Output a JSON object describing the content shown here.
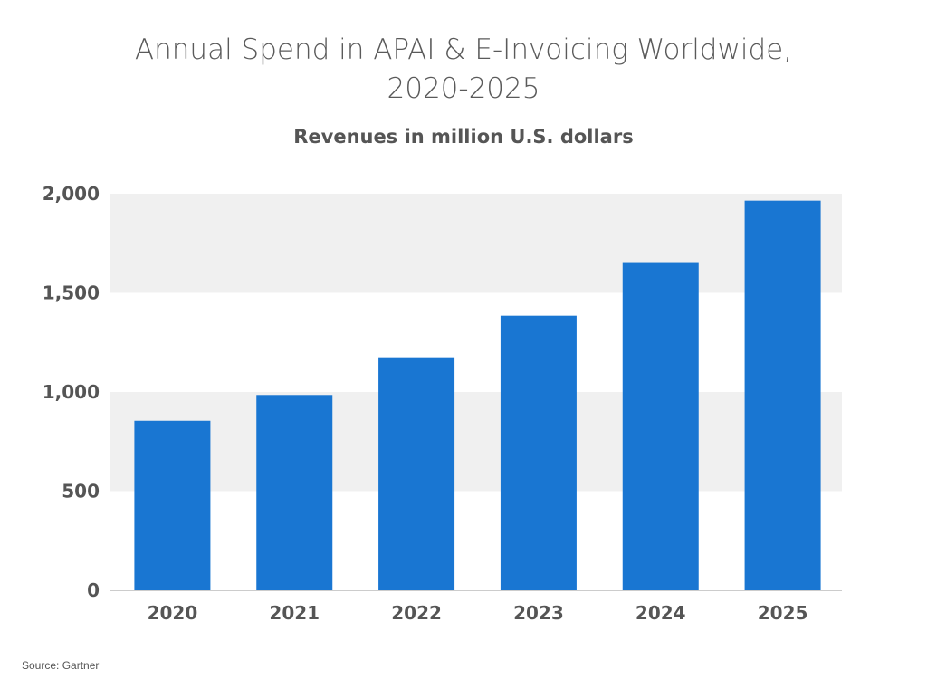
{
  "chart_data": {
    "type": "bar",
    "title_line1": "Annual Spend in APAI & E-Invoicing Worldwide,",
    "title_line2": "2020-2025",
    "subtitle": "Revenues in million U.S. dollars",
    "categories": [
      "2020",
      "2021",
      "2022",
      "2023",
      "2024",
      "2025"
    ],
    "values": [
      855,
      985,
      1175,
      1385,
      1655,
      1965
    ],
    "ylim": [
      0,
      2000
    ],
    "yticks": [
      0,
      500,
      1000,
      1500,
      2000
    ],
    "ytick_labels": [
      "0",
      "500",
      "1,000",
      "1,500",
      "2,000"
    ],
    "xlabel": "",
    "ylabel": "",
    "grid": "alternating horizontal bands",
    "bar_color": "#1976d2",
    "band_color": "#f0f0f0",
    "axis_color": "#cccccc"
  },
  "source": "Source: Gartner"
}
